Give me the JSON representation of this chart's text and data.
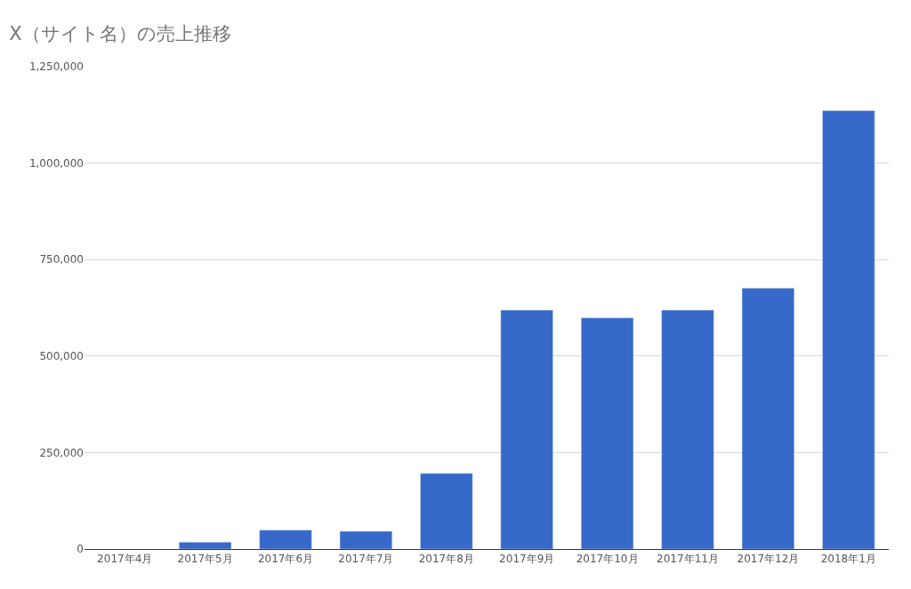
{
  "chart_data": {
    "type": "bar",
    "title": "X（サイト名）の売上推移",
    "categories": [
      "2017年4月",
      "2017年5月",
      "2017年6月",
      "2017年7月",
      "2017年8月",
      "2017年9月",
      "2017年10月",
      "2017年11月",
      "2017年12月",
      "2018年1月"
    ],
    "values": [
      null,
      18000,
      49000,
      46000,
      196000,
      619000,
      599000,
      619000,
      676000,
      1136000
    ],
    "color": "#3669c9",
    "ylim": [
      0,
      1250000
    ],
    "yticks": [
      {
        "value": 0,
        "label": "0"
      },
      {
        "value": 250000,
        "label": "250,000"
      },
      {
        "value": 500000,
        "label": "500,000"
      },
      {
        "value": 750000,
        "label": "750,000"
      },
      {
        "value": 1000000,
        "label": "1,000,000"
      },
      {
        "value": 1250000,
        "label": "1,250,000"
      }
    ],
    "grid": "y",
    "legend": false
  }
}
